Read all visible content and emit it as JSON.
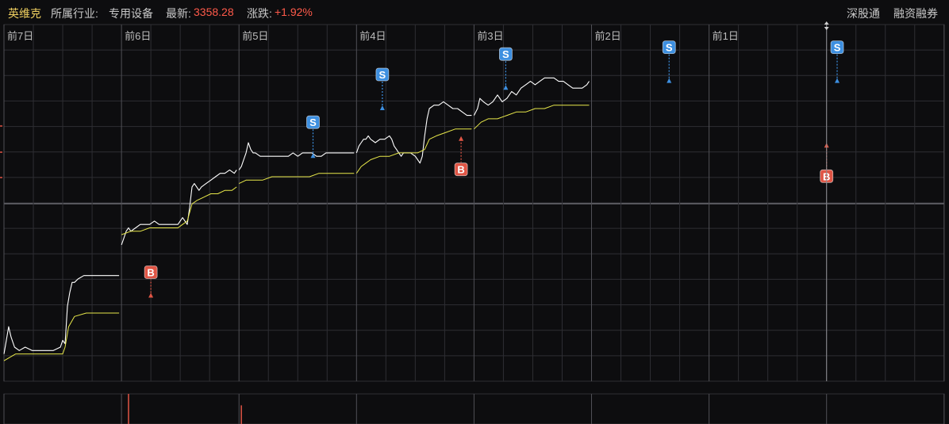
{
  "header": {
    "stock_name": "英维克",
    "industry_label": "所属行业:",
    "industry": "专用设备",
    "last_label": "最新:",
    "last": "3358.28",
    "change_label": "涨跌:",
    "change": "+1.92%",
    "link1": "深股通",
    "link2": "融资融券"
  },
  "colors": {
    "background": "#0d0d0f",
    "grid": "#2e2e33",
    "price_line": "#ffffff",
    "avg_line": "#e8e84a",
    "buy": "#e05545",
    "sell": "#3d8fe0",
    "volume": "#e05545"
  },
  "chart_data": {
    "type": "line",
    "title": "",
    "xlabel": "",
    "ylabel": "",
    "categories": [
      "前7日",
      "前6日",
      "前5日",
      "前4日",
      "前3日",
      "前2日",
      "前1日",
      ""
    ],
    "ylim": [
      0,
      100
    ],
    "grid": true,
    "legend": "none",
    "series": [
      {
        "key": "price",
        "values": [
          [
            [
              0,
              8
            ],
            [
              2,
              12
            ],
            [
              4,
              16
            ],
            [
              6,
              13
            ],
            [
              9,
              10
            ],
            [
              13,
              9
            ],
            [
              18,
              10
            ],
            [
              24,
              9
            ],
            [
              30,
              9
            ],
            [
              36,
              9
            ],
            [
              42,
              9
            ],
            [
              48,
              10
            ],
            [
              50,
              12
            ],
            [
              52,
              11
            ],
            [
              54,
              22
            ],
            [
              56,
              26
            ],
            [
              58,
              29
            ],
            [
              60,
              29
            ],
            [
              63,
              30
            ],
            [
              68,
              31
            ],
            [
              74,
              31
            ],
            [
              80,
              31
            ],
            [
              86,
              31
            ],
            [
              92,
              31
            ],
            [
              98,
              31
            ]
          ],
          [
            [
              0,
              40
            ],
            [
              2,
              42
            ],
            [
              4,
              44
            ],
            [
              6,
              45
            ],
            [
              8,
              44
            ],
            [
              12,
              45
            ],
            [
              16,
              46
            ],
            [
              20,
              46
            ],
            [
              24,
              46
            ],
            [
              28,
              47
            ],
            [
              32,
              46
            ],
            [
              36,
              46
            ],
            [
              40,
              46
            ],
            [
              44,
              46
            ],
            [
              48,
              46
            ],
            [
              50,
              47
            ],
            [
              52,
              48
            ],
            [
              54,
              47
            ],
            [
              56,
              46
            ],
            [
              58,
              51
            ],
            [
              60,
              57
            ],
            [
              62,
              58
            ],
            [
              64,
              57
            ],
            [
              66,
              56
            ],
            [
              68,
              57
            ],
            [
              72,
              58
            ],
            [
              76,
              59
            ],
            [
              80,
              60
            ],
            [
              84,
              61
            ],
            [
              88,
              61
            ],
            [
              92,
              62
            ],
            [
              96,
              61
            ],
            [
              98,
              62
            ]
          ],
          [
            [
              0,
              62
            ],
            [
              2,
              63
            ],
            [
              4,
              65
            ],
            [
              6,
              67
            ],
            [
              8,
              70
            ],
            [
              10,
              68
            ],
            [
              12,
              67
            ],
            [
              14,
              67
            ],
            [
              18,
              66
            ],
            [
              22,
              66
            ],
            [
              26,
              66
            ],
            [
              30,
              66
            ],
            [
              34,
              66
            ],
            [
              38,
              66
            ],
            [
              42,
              66
            ],
            [
              46,
              67
            ],
            [
              50,
              66
            ],
            [
              54,
              67
            ],
            [
              58,
              67
            ],
            [
              62,
              67
            ],
            [
              66,
              66
            ],
            [
              70,
              66
            ],
            [
              74,
              67
            ],
            [
              78,
              67
            ],
            [
              82,
              67
            ],
            [
              86,
              67
            ],
            [
              90,
              67
            ],
            [
              94,
              67
            ],
            [
              98,
              67
            ]
          ],
          [
            [
              0,
              67
            ],
            [
              2,
              69
            ],
            [
              4,
              70
            ],
            [
              6,
              71
            ],
            [
              8,
              71
            ],
            [
              10,
              72
            ],
            [
              12,
              71
            ],
            [
              16,
              70
            ],
            [
              20,
              71
            ],
            [
              24,
              71
            ],
            [
              28,
              72
            ],
            [
              30,
              71
            ],
            [
              32,
              69
            ],
            [
              34,
              68
            ],
            [
              36,
              67
            ],
            [
              38,
              66
            ],
            [
              40,
              67
            ],
            [
              42,
              67
            ],
            [
              46,
              67
            ],
            [
              50,
              66
            ],
            [
              54,
              64
            ],
            [
              56,
              66
            ],
            [
              58,
              72
            ],
            [
              60,
              77
            ],
            [
              62,
              80
            ],
            [
              66,
              81
            ],
            [
              70,
              81
            ],
            [
              74,
              82
            ],
            [
              78,
              81
            ],
            [
              82,
              80
            ],
            [
              86,
              80
            ],
            [
              90,
              79
            ],
            [
              94,
              78
            ],
            [
              98,
              78
            ]
          ],
          [
            [
              0,
              78
            ],
            [
              3,
              80
            ],
            [
              5,
              83
            ],
            [
              8,
              82
            ],
            [
              12,
              81
            ],
            [
              16,
              82
            ],
            [
              20,
              84
            ],
            [
              24,
              82
            ],
            [
              28,
              83
            ],
            [
              32,
              85
            ],
            [
              36,
              84
            ],
            [
              40,
              86
            ],
            [
              44,
              87
            ],
            [
              48,
              88
            ],
            [
              52,
              87
            ],
            [
              56,
              88
            ],
            [
              60,
              89
            ],
            [
              64,
              89
            ],
            [
              68,
              89
            ],
            [
              72,
              88
            ],
            [
              76,
              88
            ],
            [
              80,
              87
            ],
            [
              84,
              86
            ],
            [
              88,
              86
            ],
            [
              92,
              86
            ],
            [
              96,
              87
            ],
            [
              98,
              88
            ]
          ]
        ]
      },
      {
        "key": "avg",
        "values": [
          [
            [
              0,
              6
            ],
            [
              10,
              8
            ],
            [
              20,
              8
            ],
            [
              30,
              8
            ],
            [
              40,
              8
            ],
            [
              50,
              8
            ],
            [
              52,
              10
            ],
            [
              55,
              16
            ],
            [
              60,
              19
            ],
            [
              70,
              20
            ],
            [
              80,
              20
            ],
            [
              90,
              20
            ],
            [
              98,
              20
            ]
          ],
          [
            [
              0,
              43
            ],
            [
              8,
              44
            ],
            [
              16,
              44
            ],
            [
              24,
              45
            ],
            [
              32,
              45
            ],
            [
              40,
              45
            ],
            [
              48,
              45
            ],
            [
              52,
              46
            ],
            [
              56,
              47
            ],
            [
              60,
              52
            ],
            [
              64,
              53
            ],
            [
              70,
              54
            ],
            [
              76,
              55
            ],
            [
              82,
              55
            ],
            [
              88,
              56
            ],
            [
              94,
              56
            ],
            [
              98,
              57
            ]
          ],
          [
            [
              0,
              58
            ],
            [
              6,
              59
            ],
            [
              12,
              59
            ],
            [
              20,
              59
            ],
            [
              28,
              60
            ],
            [
              36,
              60
            ],
            [
              44,
              60
            ],
            [
              52,
              60
            ],
            [
              60,
              60
            ],
            [
              68,
              61
            ],
            [
              76,
              61
            ],
            [
              84,
              61
            ],
            [
              92,
              61
            ],
            [
              98,
              61
            ]
          ],
          [
            [
              0,
              61
            ],
            [
              4,
              63
            ],
            [
              8,
              64
            ],
            [
              12,
              65
            ],
            [
              20,
              66
            ],
            [
              28,
              66
            ],
            [
              36,
              67
            ],
            [
              44,
              67
            ],
            [
              52,
              67
            ],
            [
              58,
              68
            ],
            [
              62,
              71
            ],
            [
              68,
              72
            ],
            [
              76,
              73
            ],
            [
              84,
              74
            ],
            [
              92,
              74
            ],
            [
              98,
              74
            ]
          ],
          [
            [
              0,
              74
            ],
            [
              6,
              76
            ],
            [
              12,
              77
            ],
            [
              20,
              77
            ],
            [
              28,
              78
            ],
            [
              36,
              79
            ],
            [
              44,
              79
            ],
            [
              52,
              80
            ],
            [
              60,
              80
            ],
            [
              68,
              81
            ],
            [
              76,
              81
            ],
            [
              84,
              81
            ],
            [
              92,
              81
            ],
            [
              98,
              81
            ]
          ]
        ]
      }
    ],
    "signals": [
      {
        "type": "B",
        "label": "B",
        "x": 1.25,
        "y": 25
      },
      {
        "type": "S",
        "label": "S",
        "x": 2.63,
        "y": 66
      },
      {
        "type": "S",
        "label": "S",
        "x": 3.22,
        "y": 80
      },
      {
        "type": "B",
        "label": "B",
        "x": 3.89,
        "y": 71
      },
      {
        "type": "S",
        "label": "S",
        "x": 4.27,
        "y": 86
      },
      {
        "type": "S",
        "label": "S",
        "x": 5.66,
        "y": 88
      },
      {
        "type": "B",
        "label": "B",
        "x": 7.0,
        "y": 69
      },
      {
        "type": "S",
        "label": "S",
        "x": 7.09,
        "y": 88
      }
    ],
    "volume": [
      {
        "x": 1.06,
        "value": 100
      },
      {
        "x": 2.02,
        "value": 62
      }
    ]
  }
}
